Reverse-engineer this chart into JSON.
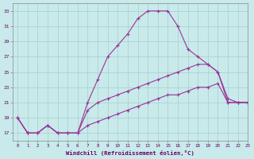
{
  "background_color": "#c8eaea",
  "grid_color": "#aacccc",
  "line_color": "#993399",
  "marker": "+",
  "xlabel": "Windchill (Refroidissement éolien,°C)",
  "xlabel_color": "#660066",
  "ylabel_color": "#660066",
  "xlim": [
    -0.5,
    23
  ],
  "ylim": [
    16,
    34
  ],
  "yticks": [
    17,
    19,
    21,
    23,
    25,
    27,
    29,
    31,
    33
  ],
  "xticks": [
    0,
    1,
    2,
    3,
    4,
    5,
    6,
    7,
    8,
    9,
    10,
    11,
    12,
    13,
    14,
    15,
    16,
    17,
    18,
    19,
    20,
    21,
    22,
    23
  ],
  "line1_x": [
    0,
    1,
    2,
    3,
    4,
    5,
    6,
    7,
    8,
    9,
    10,
    11,
    12,
    13,
    14,
    15,
    16,
    17,
    18,
    19,
    20,
    21,
    22,
    23
  ],
  "line1_y": [
    19,
    17,
    17,
    18,
    17,
    17,
    17,
    21,
    24,
    27,
    28.5,
    30,
    32,
    33,
    33,
    33,
    31,
    28,
    27,
    26,
    25,
    21,
    21,
    21
  ],
  "line2_x": [
    0,
    1,
    2,
    3,
    4,
    5,
    6,
    7,
    8,
    9,
    10,
    11,
    12,
    13,
    14,
    15,
    16,
    17,
    18,
    19,
    20,
    21,
    22,
    23
  ],
  "line2_y": [
    19,
    17,
    17,
    18,
    17,
    17,
    17,
    20,
    21,
    21.5,
    22,
    22.5,
    23,
    23.5,
    24,
    24.5,
    25,
    25.5,
    26,
    26,
    25,
    21.5,
    21,
    21
  ],
  "line3_x": [
    0,
    1,
    2,
    3,
    4,
    5,
    6,
    7,
    8,
    9,
    10,
    11,
    12,
    13,
    14,
    15,
    16,
    17,
    18,
    19,
    20,
    21,
    22,
    23
  ],
  "line3_y": [
    19,
    17,
    17,
    18,
    17,
    17,
    17,
    18,
    18.5,
    19,
    19.5,
    20,
    20.5,
    21,
    21.5,
    22,
    22,
    22.5,
    23,
    23,
    23.5,
    21,
    21,
    21
  ]
}
